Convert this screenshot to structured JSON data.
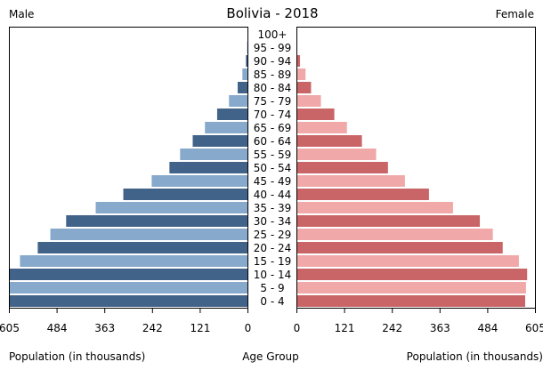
{
  "chart_data": {
    "type": "bar",
    "orientation": "horizontal-pyramid",
    "title": "Bolivia - 2018",
    "left_label": "Male",
    "right_label": "Female",
    "xlabel_left": "Population (in thousands)",
    "xlabel_center": "Age Group",
    "xlabel_right": "Population (in thousands)",
    "xlim": [
      0,
      605
    ],
    "ticks": [
      605,
      484,
      363,
      242,
      121,
      0
    ],
    "ticks_right": [
      0,
      121,
      242,
      363,
      484,
      605
    ],
    "categories": [
      "100+",
      "95 - 99",
      "90 - 94",
      "85 - 89",
      "80 - 84",
      "75 - 79",
      "70 - 74",
      "65 - 69",
      "60 - 64",
      "55 - 59",
      "50 - 54",
      "45 - 49",
      "40 - 44",
      "35 - 39",
      "30 - 34",
      "25 - 29",
      "20 - 24",
      "15 - 19",
      "10 - 14",
      "5 - 9",
      "0 - 4"
    ],
    "series": [
      {
        "name": "Male",
        "colors": [
          "#426389",
          "#87a9cc"
        ],
        "values": [
          1,
          2,
          5,
          14,
          26,
          48,
          78,
          109,
          140,
          172,
          199,
          244,
          316,
          386,
          461,
          501,
          533,
          578,
          610,
          607,
          605
        ]
      },
      {
        "name": "Female",
        "colors": [
          "#c96567",
          "#f0a8a8"
        ],
        "values": [
          1,
          1,
          8,
          22,
          36,
          61,
          95,
          127,
          165,
          201,
          231,
          274,
          335,
          396,
          464,
          497,
          522,
          563,
          584,
          581,
          579
        ]
      }
    ],
    "grid": false
  }
}
